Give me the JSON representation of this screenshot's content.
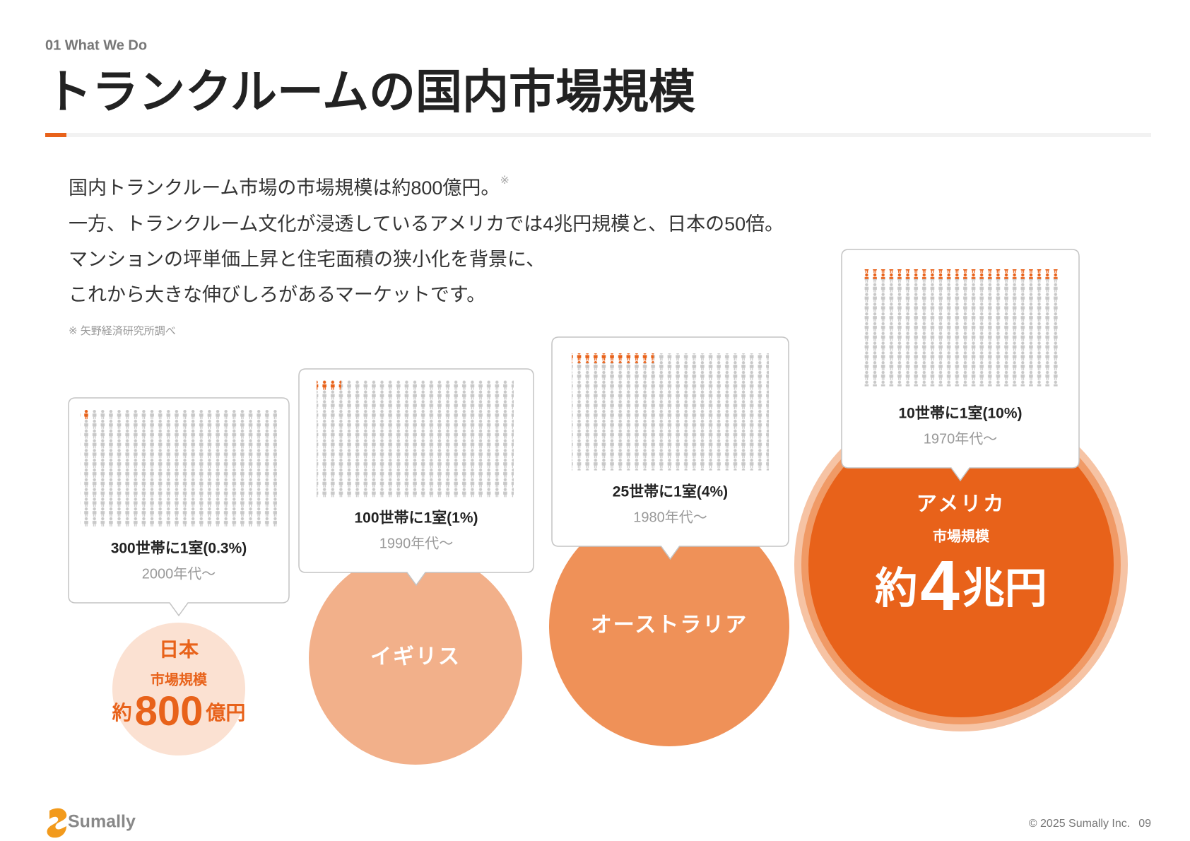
{
  "header": {
    "section": "01 What We Do",
    "title": "トランクルームの国内市場規模"
  },
  "body": {
    "lines": [
      "国内トランクルーム市場の市場規模は約800億円。",
      "一方、トランクルーム文化が浸透しているアメリカでは4兆円規模と、日本の50倍。",
      "マンションの坪単価上昇と住宅面積の狭小化を背景に、",
      "これから大きな伸びしろがあるマーケットです。"
    ],
    "note_mark": "※",
    "footnote": "※ 矢野経済研究所調べ"
  },
  "markets": [
    {
      "name": "日本",
      "market_label": "市場規模",
      "amount_prefix": "約",
      "amount": "800",
      "amount_unit": "億円",
      "ratio": "300世帯に1室(0.3%)",
      "era": "2000年代〜"
    },
    {
      "name": "イギリス",
      "ratio": "100世帯に1室(1%)",
      "era": "1990年代〜"
    },
    {
      "name": "オーストラリア",
      "ratio": "25世帯に1室(4%)",
      "era": "1980年代〜"
    },
    {
      "name": "アメリカ",
      "market_label": "市場規模",
      "amount_prefix": "約",
      "amount": "4",
      "amount_unit": "兆円",
      "ratio": "10世帯に1室(10%)",
      "era": "1970年代〜"
    }
  ],
  "footer": {
    "logo": "Sumally",
    "copyright": "© 2025 Sumally Inc.",
    "page": "09"
  }
}
